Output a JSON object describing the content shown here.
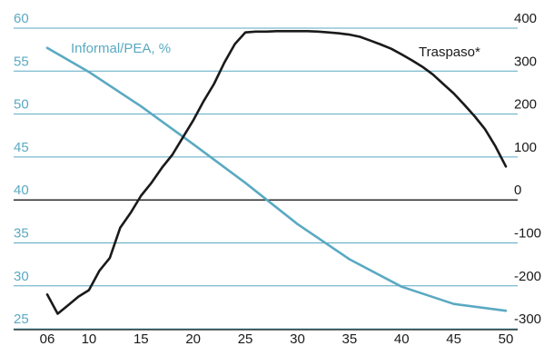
{
  "chart_data": {
    "type": "line",
    "x_ticks": [
      "06",
      "10",
      "15",
      "20",
      "25",
      "30",
      "35",
      "40",
      "45",
      "50"
    ],
    "left_axis": {
      "ticks": [
        "60",
        "55",
        "50",
        "45",
        "40",
        "35",
        "30",
        "25"
      ],
      "range": [
        25,
        60
      ]
    },
    "right_axis": {
      "ticks": [
        "400",
        "300",
        "200",
        "100",
        "0",
        "-100",
        "-200",
        "-300"
      ],
      "range": [
        -300,
        400
      ]
    },
    "grid": "horizontal",
    "colors": {
      "informal": "#5aa9c2",
      "traspaso": "#1a1a1a",
      "grid": "#5aa9c2",
      "zero_line": "#1a1a1a"
    },
    "series": [
      {
        "name": "Informal/PEA, %",
        "axis": "left",
        "x": [
          2006,
          2010,
          2015,
          2020,
          2025,
          2030,
          2035,
          2040,
          2045,
          2050
        ],
        "values": [
          57.7,
          54.9,
          50.9,
          46.5,
          42.0,
          37.2,
          33.1,
          29.9,
          27.9,
          27.1
        ]
      },
      {
        "name": "Traspaso*",
        "axis": "right",
        "x": [
          2006,
          2007,
          2008,
          2009,
          2010,
          2011,
          2012,
          2013,
          2014,
          2015,
          2016,
          2017,
          2018,
          2019,
          2020,
          2021,
          2022,
          2023,
          2024,
          2025,
          2026,
          2027,
          2028,
          2029,
          2030,
          2031,
          2032,
          2033,
          2034,
          2035,
          2036,
          2037,
          2038,
          2039,
          2040,
          2041,
          2042,
          2043,
          2044,
          2045,
          2046,
          2047,
          2048,
          2049,
          2050
        ],
        "values": [
          -220,
          -265,
          -245,
          -225,
          -210,
          -165,
          -135,
          -65,
          -30,
          10,
          40,
          75,
          105,
          145,
          185,
          230,
          270,
          320,
          363,
          390,
          392,
          392,
          393,
          393,
          393,
          393,
          392,
          390,
          388,
          385,
          380,
          371,
          362,
          352,
          339,
          325,
          310,
          292,
          270,
          248,
          222,
          195,
          165,
          125,
          78
        ]
      }
    ]
  }
}
